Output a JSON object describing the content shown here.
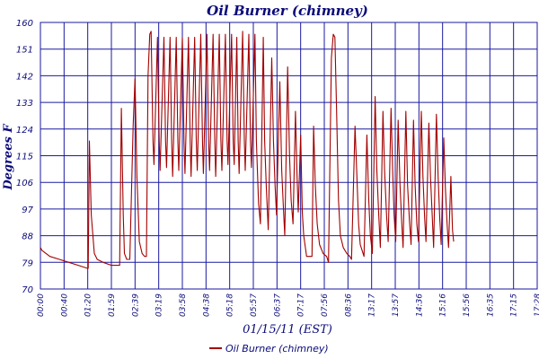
{
  "chart_data": {
    "type": "line",
    "title": "Oil Burner (chimney)",
    "xlabel": "01/15/11 (EST)",
    "ylabel": "Degrees F",
    "ylim": [
      70,
      160
    ],
    "y_ticks": [
      70,
      79,
      88,
      97,
      106,
      115,
      124,
      133,
      142,
      151,
      160
    ],
    "x_tick_labels": [
      "00:00",
      "00:40",
      "01:20",
      "01:59",
      "02:39",
      "03:19",
      "03:58",
      "04:38",
      "05:18",
      "05:57",
      "06:37",
      "07:17",
      "07:56",
      "08:36",
      "13:17",
      "13:57",
      "14:36",
      "15:16",
      "15:56",
      "16:35",
      "17:15",
      "17:28"
    ],
    "grid": true,
    "legend_position": "bottom-center",
    "series": [
      {
        "name": "Oil Burner (chimney)",
        "color": "#a30000",
        "values": [
          [
            0.0,
            84
          ],
          [
            0.07,
            83
          ],
          [
            0.4,
            81
          ],
          [
            0.8,
            80
          ],
          [
            1.2,
            79
          ],
          [
            1.6,
            78
          ],
          [
            1.98,
            77
          ],
          [
            2.02,
            77
          ],
          [
            2.07,
            120
          ],
          [
            2.15,
            95
          ],
          [
            2.28,
            82
          ],
          [
            2.4,
            80
          ],
          [
            2.65,
            79
          ],
          [
            3.0,
            78
          ],
          [
            3.3,
            78
          ],
          [
            3.35,
            78
          ],
          [
            3.42,
            131
          ],
          [
            3.5,
            95
          ],
          [
            3.55,
            82
          ],
          [
            3.65,
            80
          ],
          [
            3.78,
            80
          ],
          [
            3.92,
            125
          ],
          [
            4.0,
            141
          ],
          [
            4.08,
            108
          ],
          [
            4.18,
            86
          ],
          [
            4.3,
            82
          ],
          [
            4.4,
            81
          ],
          [
            4.48,
            81
          ],
          [
            4.55,
            142
          ],
          [
            4.62,
            156
          ],
          [
            4.68,
            157
          ],
          [
            4.76,
            120
          ],
          [
            4.8,
            112
          ],
          [
            4.95,
            155
          ],
          [
            5.02,
            120
          ],
          [
            5.06,
            110
          ],
          [
            5.22,
            155
          ],
          [
            5.29,
            120
          ],
          [
            5.33,
            111
          ],
          [
            5.48,
            155
          ],
          [
            5.55,
            120
          ],
          [
            5.59,
            108
          ],
          [
            5.74,
            155
          ],
          [
            5.81,
            120
          ],
          [
            5.85,
            110
          ],
          [
            6.0,
            155
          ],
          [
            6.07,
            120
          ],
          [
            6.11,
            109
          ],
          [
            6.26,
            155
          ],
          [
            6.33,
            120
          ],
          [
            6.37,
            108
          ],
          [
            6.52,
            155
          ],
          [
            6.59,
            120
          ],
          [
            6.63,
            110
          ],
          [
            6.78,
            156
          ],
          [
            6.85,
            120
          ],
          [
            6.89,
            109
          ],
          [
            7.04,
            156
          ],
          [
            7.11,
            120
          ],
          [
            7.15,
            110
          ],
          [
            7.3,
            156
          ],
          [
            7.37,
            120
          ],
          [
            7.41,
            108
          ],
          [
            7.56,
            156
          ],
          [
            7.63,
            120
          ],
          [
            7.67,
            110
          ],
          [
            7.82,
            156
          ],
          [
            7.89,
            120
          ],
          [
            7.93,
            112
          ],
          [
            8.08,
            156
          ],
          [
            8.15,
            120
          ],
          [
            8.19,
            112
          ],
          [
            8.3,
            155
          ],
          [
            8.36,
            120
          ],
          [
            8.4,
            109
          ],
          [
            8.55,
            157
          ],
          [
            8.62,
            120
          ],
          [
            8.66,
            110
          ],
          [
            8.81,
            156
          ],
          [
            8.88,
            120
          ],
          [
            8.92,
            111
          ],
          [
            9.07,
            156
          ],
          [
            9.13,
            120
          ],
          [
            9.22,
            99
          ],
          [
            9.3,
            92
          ],
          [
            9.42,
            155
          ],
          [
            9.48,
            120
          ],
          [
            9.55,
            104
          ],
          [
            9.63,
            90
          ],
          [
            9.78,
            148
          ],
          [
            9.85,
            120
          ],
          [
            9.92,
            105
          ],
          [
            9.98,
            95
          ],
          [
            10.12,
            140
          ],
          [
            10.2,
            110
          ],
          [
            10.28,
            96
          ],
          [
            10.33,
            88
          ],
          [
            10.45,
            145
          ],
          [
            10.53,
            115
          ],
          [
            10.6,
            100
          ],
          [
            10.68,
            92
          ],
          [
            10.78,
            130
          ],
          [
            10.85,
            108
          ],
          [
            10.9,
            96
          ],
          [
            11.0,
            122
          ],
          [
            11.07,
            96
          ],
          [
            11.13,
            88
          ],
          [
            11.25,
            81
          ],
          [
            11.4,
            81
          ],
          [
            11.48,
            81
          ],
          [
            11.55,
            125
          ],
          [
            11.62,
            105
          ],
          [
            11.7,
            92
          ],
          [
            11.8,
            85
          ],
          [
            11.95,
            82
          ],
          [
            12.1,
            81
          ],
          [
            12.18,
            79
          ],
          [
            12.3,
            148
          ],
          [
            12.38,
            156
          ],
          [
            12.45,
            155
          ],
          [
            12.52,
            130
          ],
          [
            12.6,
            100
          ],
          [
            12.68,
            88
          ],
          [
            12.8,
            84
          ],
          [
            12.95,
            82
          ],
          [
            13.08,
            81
          ],
          [
            13.15,
            80
          ],
          [
            13.3,
            125
          ],
          [
            13.38,
            108
          ],
          [
            13.45,
            92
          ],
          [
            13.52,
            85
          ],
          [
            13.6,
            83
          ],
          [
            13.68,
            81
          ],
          [
            13.8,
            122
          ],
          [
            13.88,
            100
          ],
          [
            13.95,
            88
          ],
          [
            14.03,
            82
          ],
          [
            14.15,
            135
          ],
          [
            14.22,
            110
          ],
          [
            14.3,
            95
          ],
          [
            14.37,
            84
          ],
          [
            14.48,
            130
          ],
          [
            14.55,
            110
          ],
          [
            14.63,
            95
          ],
          [
            14.7,
            86
          ],
          [
            14.82,
            131
          ],
          [
            14.89,
            110
          ],
          [
            14.95,
            95
          ],
          [
            15.02,
            86
          ],
          [
            15.12,
            127
          ],
          [
            15.2,
            105
          ],
          [
            15.27,
            93
          ],
          [
            15.33,
            84
          ],
          [
            15.45,
            130
          ],
          [
            15.52,
            105
          ],
          [
            15.6,
            93
          ],
          [
            15.67,
            85
          ],
          [
            15.77,
            127
          ],
          [
            15.84,
            105
          ],
          [
            15.91,
            92
          ],
          [
            15.98,
            86
          ],
          [
            16.1,
            130
          ],
          [
            16.17,
            108
          ],
          [
            16.24,
            94
          ],
          [
            16.3,
            86
          ],
          [
            16.42,
            126
          ],
          [
            16.49,
            108
          ],
          [
            16.56,
            95
          ],
          [
            16.62,
            84
          ],
          [
            16.74,
            129
          ],
          [
            16.81,
            108
          ],
          [
            16.88,
            94
          ],
          [
            16.94,
            85
          ],
          [
            17.05,
            121
          ],
          [
            17.12,
            104
          ],
          [
            17.19,
            92
          ],
          [
            17.25,
            84
          ],
          [
            17.35,
            108
          ],
          [
            17.42,
            90
          ],
          [
            17.47,
            86
          ]
        ]
      }
    ]
  }
}
